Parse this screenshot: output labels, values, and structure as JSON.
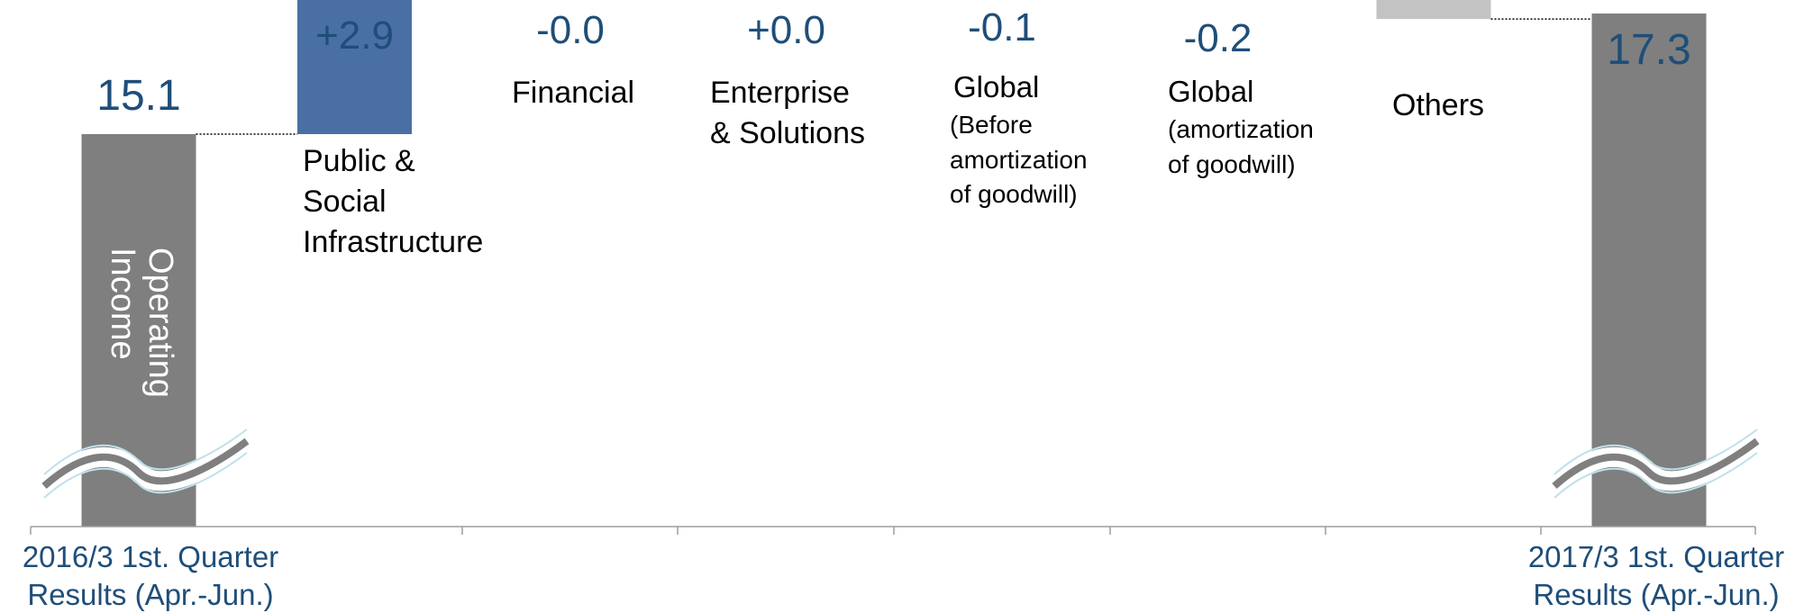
{
  "chart_data": {
    "type": "bar",
    "subtype": "waterfall",
    "start": {
      "label": "2016/3 1st. Quarter Results (Apr.-Jun.)",
      "value": 15.1,
      "value_label": "15.1",
      "color": "#7f7f7f"
    },
    "end": {
      "label": "2017/3 1st. Quarter Results (Apr.-Jun.)",
      "value": 17.3,
      "value_label": "17.3",
      "color": "#7f7f7f"
    },
    "bar_text": "Operating Income",
    "axis_break": true,
    "steps": [
      {
        "category": "Public & Social Infrastructure",
        "value": 2.9,
        "value_label": "+2.9",
        "color": "#4a6fa5"
      },
      {
        "category": "Financial",
        "value": 0.0,
        "value_label": "-0.0",
        "color": "#e3a03a"
      },
      {
        "category": "Enterprise & Solutions",
        "value": 0.0,
        "value_label": "+0.0",
        "color": "#8fc1b5"
      },
      {
        "category": "Global (Before amortization of goodwill)",
        "value": -0.1,
        "value_label": "-0.1",
        "color": "#7e7b9e"
      },
      {
        "category": "Global (amortization of goodwill)",
        "value": -0.2,
        "value_label": "-0.2",
        "color": "#6e6a92"
      },
      {
        "category": "Others",
        "value": -0.5,
        "value_label": "",
        "color": "#c3c3c3"
      }
    ],
    "grid": false,
    "legend": "none"
  },
  "labels": {
    "inbar_line1": "Operating",
    "inbar_line2": "Income",
    "start_cat_line1": "2016/3 1st. Quarter",
    "start_cat_line2": "Results (Apr.-Jun.)",
    "end_cat_line1": "2017/3 1st. Quarter",
    "end_cat_line2": "Results (Apr.-Jun.)",
    "cat_public": [
      "Public &",
      "Social",
      "Infrastructure"
    ],
    "cat_financial": [
      "Financial"
    ],
    "cat_enterprise": [
      "Enterprise",
      "&  Solutions"
    ],
    "cat_global1": [
      "Global",
      "(Before",
      "amortization",
      "of goodwill)"
    ],
    "cat_global2": [
      "Global",
      "(amortization",
      "of goodwill)"
    ],
    "cat_others": [
      "Others"
    ]
  }
}
